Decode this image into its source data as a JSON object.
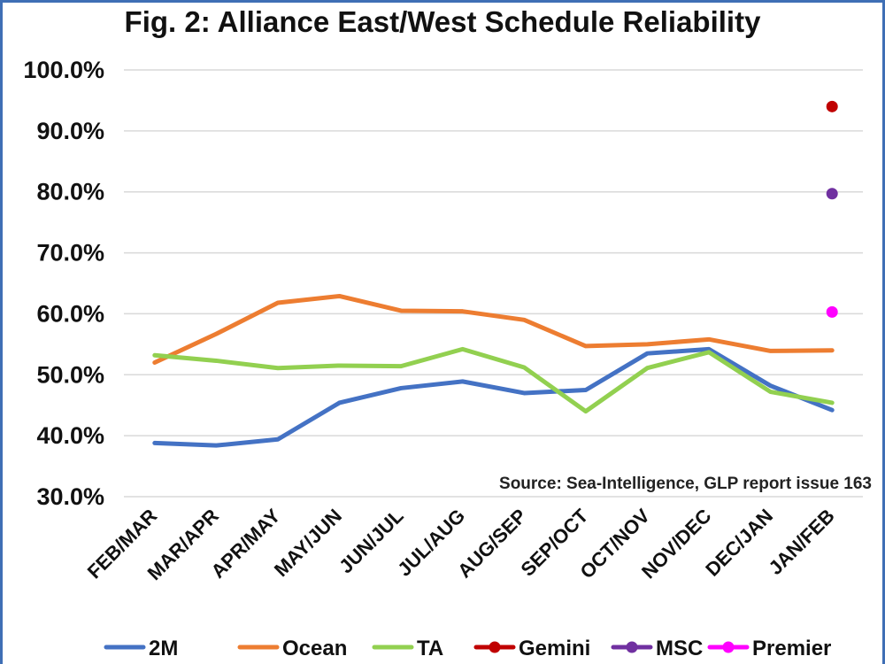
{
  "chart_data": {
    "type": "line",
    "title": "Fig. 2: Alliance East/West Schedule Reliability",
    "source": "Source: Sea-Intelligence, GLP report issue 163",
    "categories": [
      "FEB/MAR",
      "MAR/APR",
      "APR/MAY",
      "MAY/JUN",
      "JUN/JUL",
      "JUL/AUG",
      "AUG/SEP",
      "SEP/OCT",
      "OCT/NOV",
      "NOV/DEC",
      "DEC/JAN",
      "JAN/FEB"
    ],
    "ylim": [
      30,
      100
    ],
    "yticks": [
      "30.0%",
      "40.0%",
      "50.0%",
      "60.0%",
      "70.0%",
      "80.0%",
      "90.0%",
      "100.0%"
    ],
    "grid": true,
    "legend_position": "bottom",
    "series": [
      {
        "name": "2M",
        "style": "line",
        "color": "#4472c4",
        "values": [
          38.8,
          38.4,
          39.4,
          45.4,
          47.8,
          48.9,
          47.0,
          47.5,
          53.5,
          54.2,
          48.2,
          44.2
        ]
      },
      {
        "name": "Ocean",
        "style": "line",
        "color": "#ed7d31",
        "values": [
          52.0,
          56.7,
          61.8,
          62.9,
          60.5,
          60.4,
          59.0,
          54.7,
          55.0,
          55.8,
          53.9,
          54.0
        ]
      },
      {
        "name": "TA",
        "style": "line",
        "color": "#92d050",
        "values": [
          53.2,
          52.3,
          51.1,
          51.5,
          51.4,
          54.2,
          51.2,
          44.0,
          51.1,
          53.7,
          47.2,
          45.4
        ]
      },
      {
        "name": "Gemini",
        "style": "point",
        "color": "#c00000",
        "values": [
          null,
          null,
          null,
          null,
          null,
          null,
          null,
          null,
          null,
          null,
          null,
          94.0
        ]
      },
      {
        "name": "MSC",
        "style": "point",
        "color": "#7030a0",
        "values": [
          null,
          null,
          null,
          null,
          null,
          null,
          null,
          null,
          null,
          null,
          null,
          79.7
        ]
      },
      {
        "name": "Premier",
        "style": "point",
        "color": "#ff00ff",
        "values": [
          null,
          null,
          null,
          null,
          null,
          null,
          null,
          null,
          null,
          null,
          null,
          60.3
        ]
      }
    ]
  }
}
